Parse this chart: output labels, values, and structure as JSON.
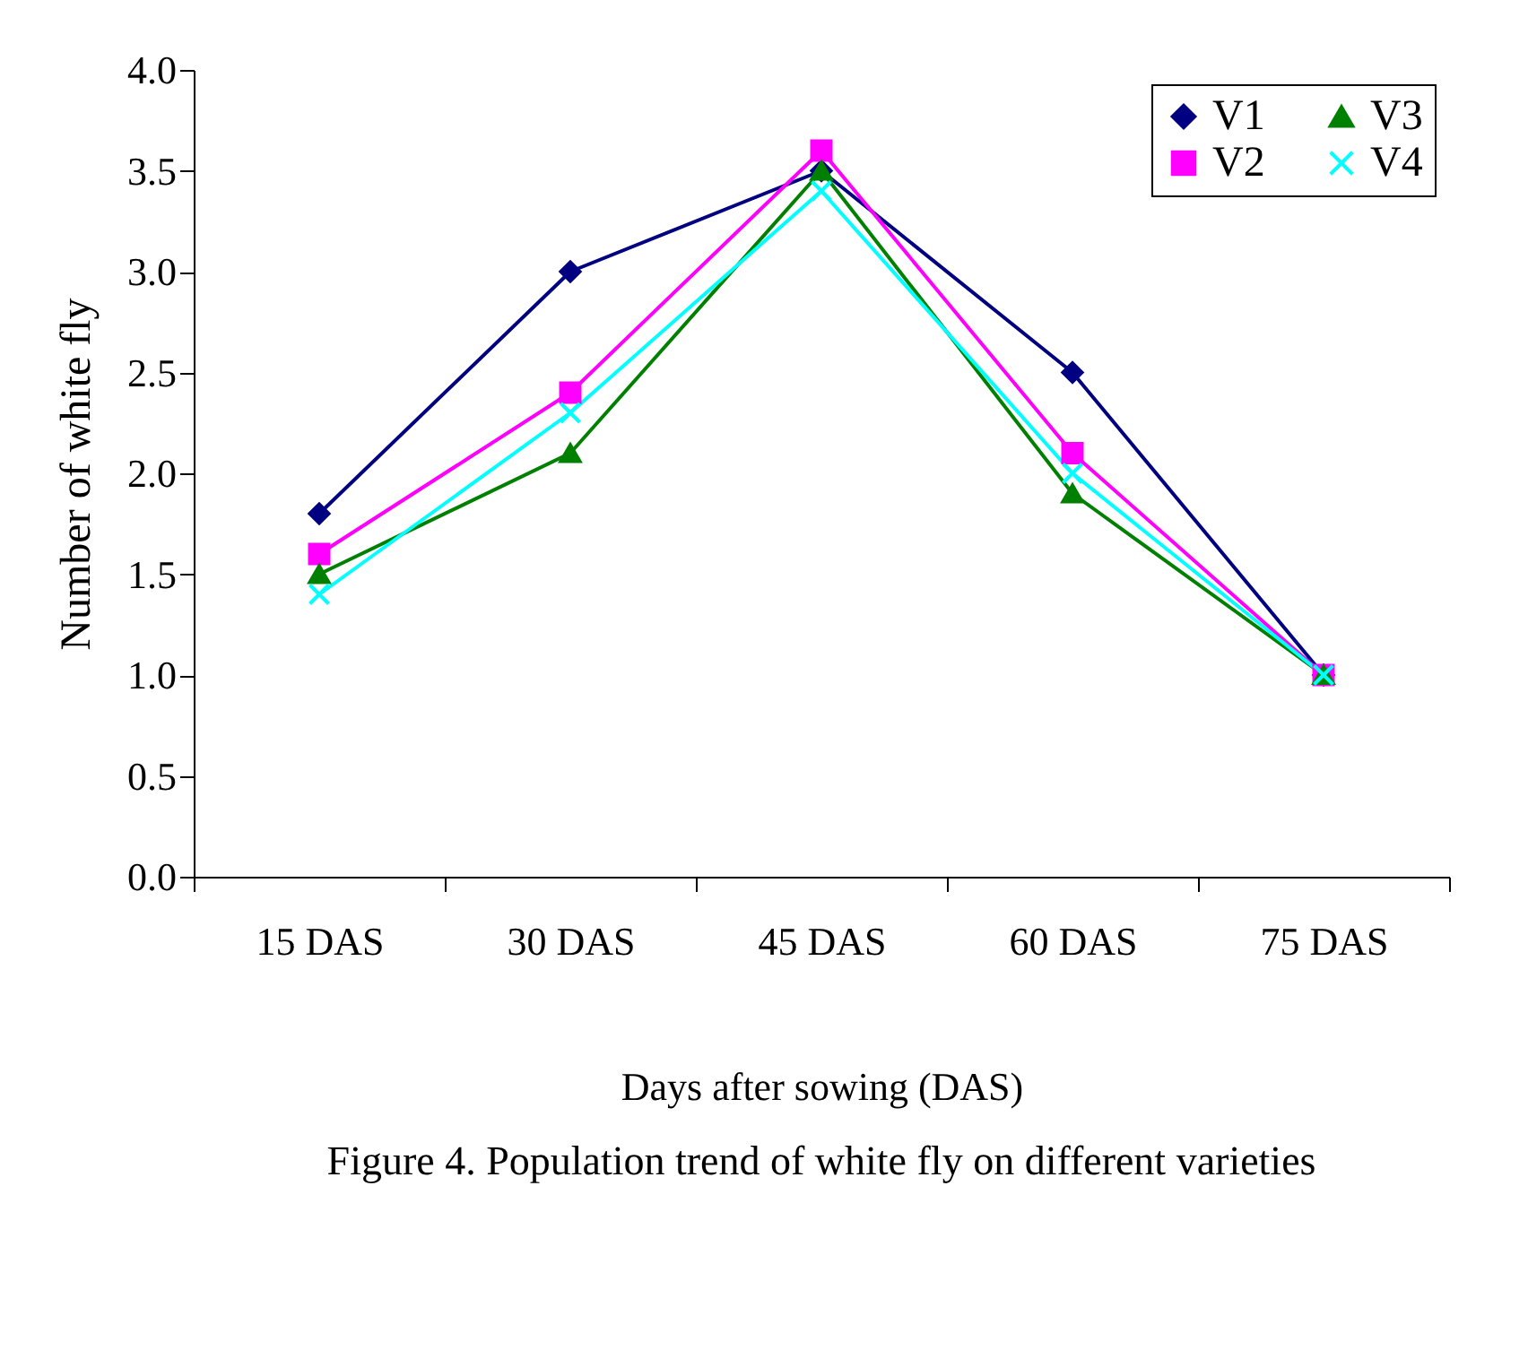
{
  "chart_data": {
    "type": "line",
    "title": "Figure 4. Population trend of white fly on different varieties",
    "xlabel": "Days after sowing (DAS)",
    "ylabel": "Number of white fly",
    "categories": [
      "15 DAS",
      "30 DAS",
      "45 DAS",
      "60 DAS",
      "75 DAS"
    ],
    "series": [
      {
        "name": "V1",
        "color": "#000080",
        "marker": "diamond",
        "values": [
          1.8,
          3.0,
          3.5,
          2.5,
          1.0
        ]
      },
      {
        "name": "V2",
        "color": "#ff00ff",
        "marker": "square",
        "values": [
          1.6,
          2.4,
          3.6,
          2.1,
          1.0
        ]
      },
      {
        "name": "V3",
        "color": "#008000",
        "marker": "triangle",
        "values": [
          1.5,
          2.1,
          3.5,
          1.9,
          1.0
        ]
      },
      {
        "name": "V4",
        "color": "#00ffff",
        "marker": "cross",
        "values": [
          1.4,
          2.3,
          3.4,
          2.0,
          1.0
        ]
      }
    ],
    "ylim": [
      0,
      4
    ],
    "yticks": [
      {
        "value": 0,
        "label": "0.0"
      },
      0.5,
      {
        "value": 1,
        "label": "1.0"
      },
      1.5,
      {
        "value": 2,
        "label": "2.0"
      },
      2.5,
      {
        "value": 3,
        "label": "3.0"
      },
      3.5,
      {
        "value": 4,
        "label": "4.0"
      }
    ],
    "grid": false,
    "legend": "top right",
    "line_style": "solid"
  }
}
